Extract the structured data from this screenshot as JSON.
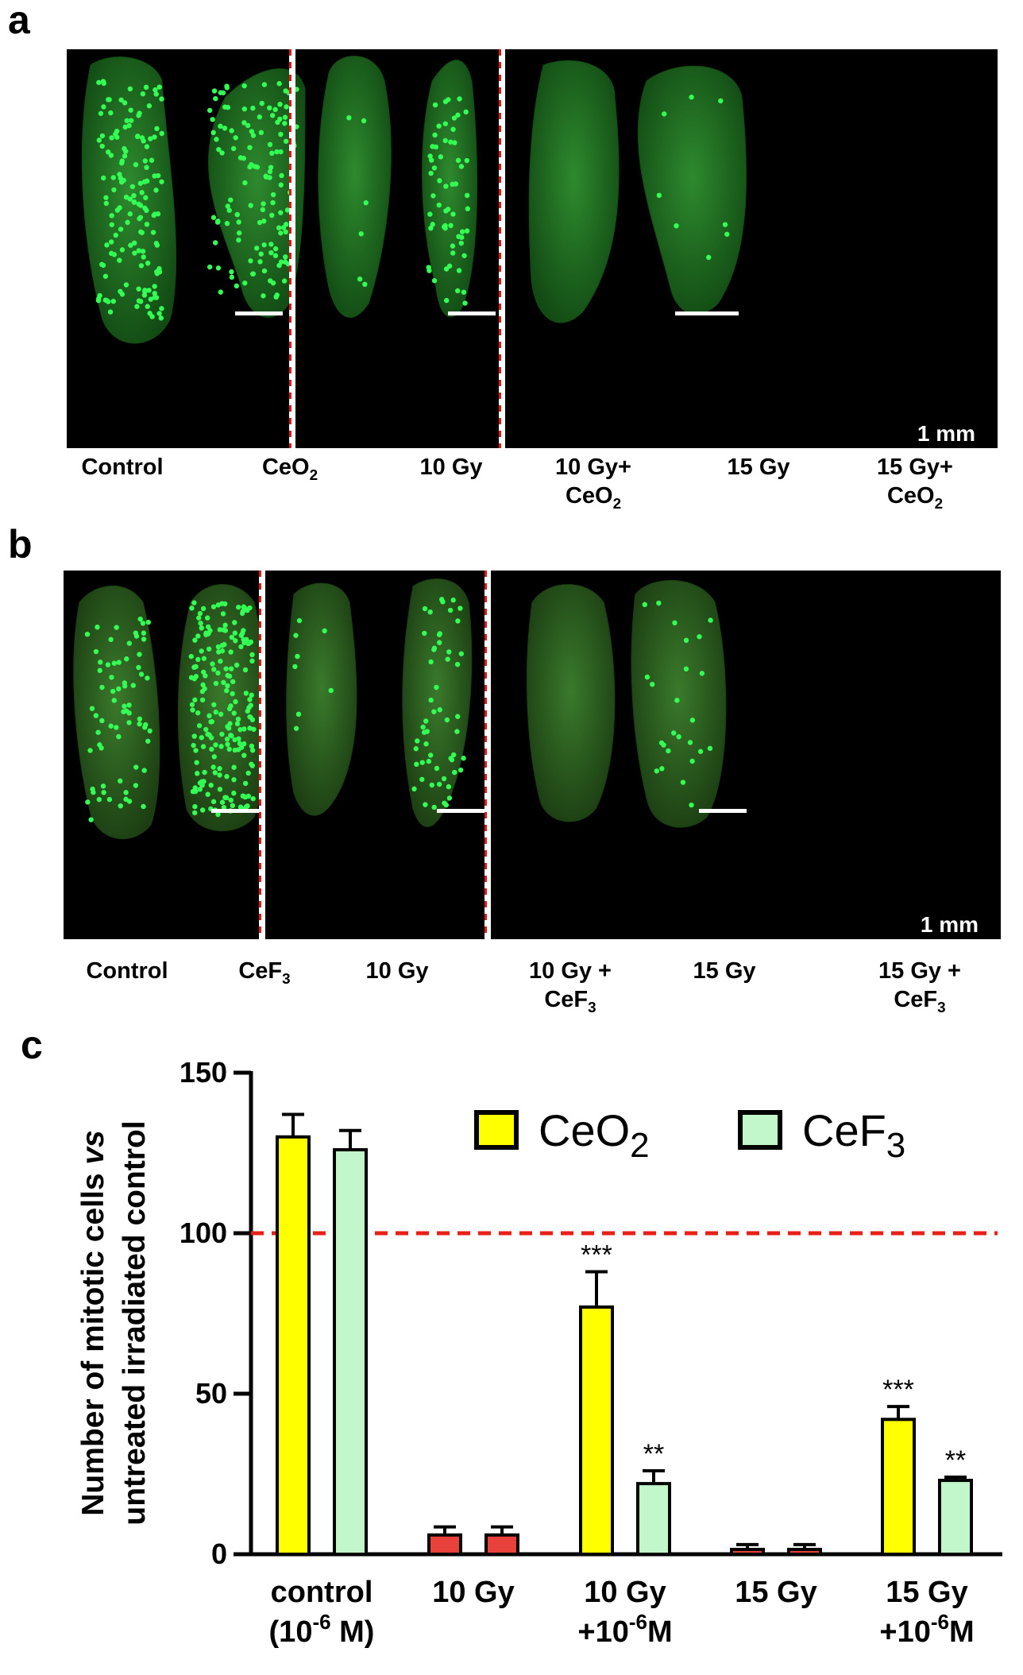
{
  "panels": {
    "a": {
      "letter": "a",
      "labels": [
        {
          "text": "Control"
        },
        {
          "text": "CeO",
          "sub": "2"
        },
        {
          "text": "10 Gy"
        },
        {
          "text": "10 Gy+",
          "line2": "CeO",
          "sub": "2"
        },
        {
          "text": "15 Gy"
        },
        {
          "text": "15 Gy+",
          "line2": "CeO",
          "sub": "2"
        }
      ],
      "scale_bar_label": "1 mm"
    },
    "b": {
      "letter": "b",
      "labels": [
        {
          "text": "Control"
        },
        {
          "text": "CeF",
          "sub": "3"
        },
        {
          "text": "10 Gy"
        },
        {
          "text": "10 Gy +",
          "line2": "CeF",
          "sub": "3"
        },
        {
          "text": "15 Gy"
        },
        {
          "text": "15 Gy +",
          "line2": "CeF",
          "sub": "3"
        }
      ],
      "scale_bar_label": "1 mm"
    },
    "c": {
      "letter": "c"
    }
  },
  "colors": {
    "ceo2": "#ffff00",
    "cef3": "#c2f7cc",
    "irradiated": "#e8403a",
    "reference_line": "#e8201a",
    "fluorescence": "#33ff55"
  },
  "chart_data": {
    "type": "bar",
    "ylabel_line1": "Number of mitotic cells",
    "ylabel_vs": "vs",
    "ylabel_line2": "untreated irradiated control",
    "ylim": [
      0,
      150
    ],
    "yticks": [
      0,
      50,
      100,
      150
    ],
    "reference_line": 100,
    "categories": [
      {
        "line1": "control",
        "line2": "(10",
        "sup": "-6",
        "line2_end": " M)"
      },
      {
        "line1": "10 Gy",
        "line2": ""
      },
      {
        "line1": "10 Gy",
        "line2": "+10",
        "sup": "-6",
        "line2_end": "M"
      },
      {
        "line1": "15 Gy",
        "line2": ""
      },
      {
        "line1": "15 Gy",
        "line2": "+10",
        "sup": "-6",
        "line2_end": "M"
      }
    ],
    "series": [
      {
        "name": "CeO",
        "sub": "2",
        "values": [
          130,
          6,
          77,
          1.5,
          42
        ],
        "errors": [
          7,
          2.5,
          11,
          1.5,
          4
        ],
        "sig": [
          "",
          "",
          "***",
          "",
          "***"
        ]
      },
      {
        "name": "CeF",
        "sub": "3",
        "values": [
          126,
          6,
          22,
          1.5,
          23
        ],
        "errors": [
          6,
          2.5,
          4,
          1.5,
          1
        ],
        "sig": [
          "",
          "",
          "**",
          "",
          "**"
        ]
      }
    ],
    "irradiated_only_categories": [
      1,
      3
    ],
    "legend_position": "top-right"
  }
}
